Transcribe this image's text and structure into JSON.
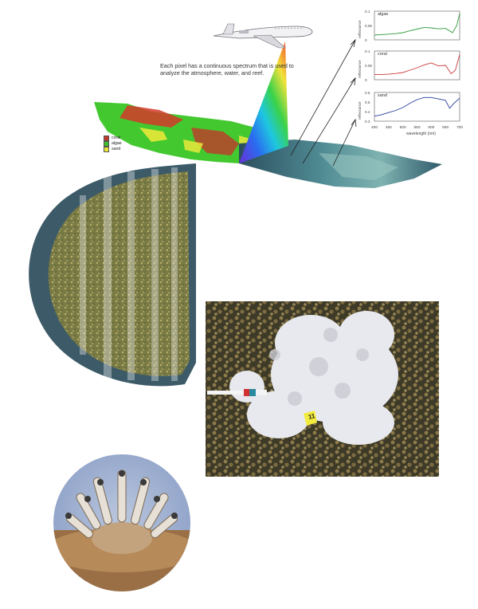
{
  "caption": "Each pixel has a continuous spectrum that is used to analyze the atmosphere, water, and reef.",
  "legend": [
    {
      "label": "coral",
      "color": "#c0392b"
    },
    {
      "label": "algae",
      "color": "#3fbf2f"
    },
    {
      "label": "sand",
      "color": "#e8e83a"
    }
  ],
  "panels": [
    {
      "title": "algae",
      "ylabel": "reflectance",
      "yticks": [
        "0.1",
        "0.05",
        "0"
      ],
      "ylim": [
        0,
        0.12
      ],
      "color": "#2e9b3a"
    },
    {
      "title": "coral",
      "ylabel": "reflectance",
      "yticks": [
        "0.1",
        "0.05",
        "0"
      ],
      "ylim": [
        0,
        0.12
      ],
      "color": "#c83a3a"
    },
    {
      "title": "sand",
      "ylabel": "reflectance",
      "yticks": [
        "0.6",
        "0.5",
        "0.4",
        "0.3"
      ],
      "ylim": [
        0.25,
        0.65
      ],
      "color": "#2a3f9e"
    }
  ],
  "xticks": [
    "400",
    "450",
    "500",
    "550",
    "600",
    "650",
    "700"
  ],
  "xlabel": "wavelength (nm)",
  "quadrat_tag": "11",
  "chart_data": [
    {
      "type": "line",
      "title": "algae",
      "ylabel": "reflectance",
      "x": [
        400,
        425,
        450,
        475,
        500,
        525,
        550,
        575,
        600,
        625,
        650,
        675,
        690,
        700
      ],
      "series": [
        {
          "values": [
            0.02,
            0.022,
            0.024,
            0.026,
            0.03,
            0.038,
            0.045,
            0.052,
            0.05,
            0.046,
            0.048,
            0.03,
            0.06,
            0.11
          ]
        }
      ],
      "xlim": [
        400,
        700
      ],
      "ylim": [
        0,
        0.12
      ]
    },
    {
      "type": "line",
      "title": "coral",
      "ylabel": "reflectance",
      "x": [
        400,
        425,
        450,
        475,
        500,
        525,
        550,
        575,
        600,
        625,
        650,
        670,
        685,
        700
      ],
      "series": [
        {
          "values": [
            0.022,
            0.022,
            0.023,
            0.026,
            0.03,
            0.04,
            0.05,
            0.062,
            0.07,
            0.058,
            0.06,
            0.025,
            0.04,
            0.105
          ]
        }
      ],
      "xlim": [
        400,
        700
      ],
      "ylim": [
        0,
        0.12
      ]
    },
    {
      "type": "line",
      "title": "sand",
      "ylabel": "reflectance",
      "x": [
        400,
        425,
        450,
        475,
        500,
        525,
        550,
        575,
        600,
        625,
        650,
        665,
        680,
        700
      ],
      "series": [
        {
          "values": [
            0.32,
            0.34,
            0.37,
            0.4,
            0.44,
            0.5,
            0.55,
            0.58,
            0.58,
            0.56,
            0.54,
            0.43,
            0.5,
            0.57
          ]
        }
      ],
      "xlim": [
        400,
        700
      ],
      "ylim": [
        0.25,
        0.65
      ]
    }
  ]
}
